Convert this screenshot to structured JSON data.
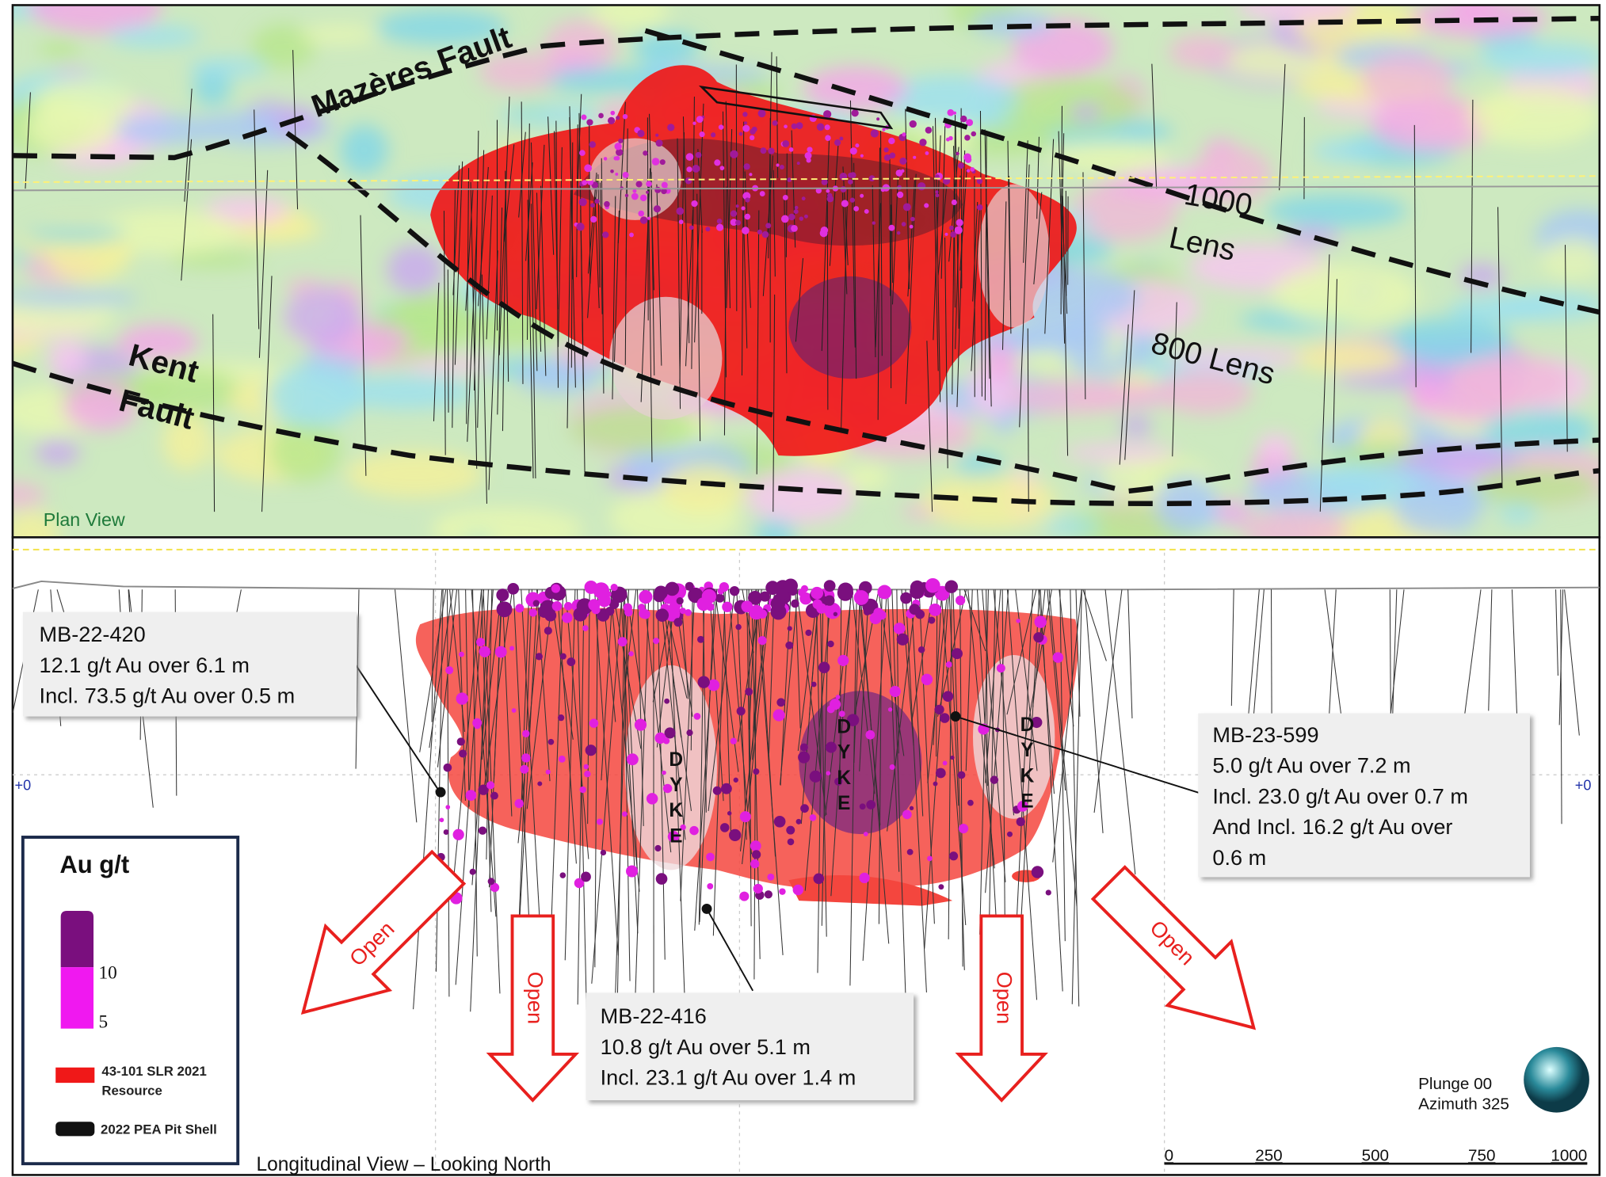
{
  "plan_view": {
    "fault_labels": [
      "Mazères Fault",
      "Kent",
      "Fault"
    ],
    "lens_labels": [
      "1000",
      "Lens",
      "800 Lens"
    ],
    "caption": "Plan View"
  },
  "longitudinal_view": {
    "caption": "Longitudinal View – Looking North",
    "level_marks": [
      "+0",
      "+0"
    ],
    "dyke_labels": [
      "DYKE",
      "DYKE",
      "DYKE"
    ],
    "open_labels": [
      "Open",
      "Open",
      "Open",
      "Open"
    ],
    "callouts": [
      {
        "hole": "MB-22-420",
        "lines": [
          "12.1 g/t Au over 6.1 m",
          "Incl. 73.5 g/t Au over 0.5 m"
        ]
      },
      {
        "hole": "MB-23-599",
        "lines": [
          "5.0 g/t Au over 7.2 m",
          "Incl. 23.0 g/t Au over 0.7 m",
          "And Incl. 16.2 g/t Au over",
          "0.6 m"
        ]
      },
      {
        "hole": "MB-22-416",
        "lines": [
          "10.8 g/t Au over 5.1 m",
          "Incl. 23.1 g/t Au over 1.4 m"
        ]
      }
    ],
    "view_info": [
      "Plunge 00",
      "Azimuth 325"
    ],
    "scale_bar": [
      "0",
      "250",
      "500",
      "750",
      "1000"
    ]
  },
  "legend": {
    "title": "Au g/t",
    "scale_labels": [
      "10",
      "5"
    ],
    "resource": [
      "43-101 SLR 2021",
      "Resource"
    ],
    "pit_shell": "2022 PEA Pit Shell"
  }
}
